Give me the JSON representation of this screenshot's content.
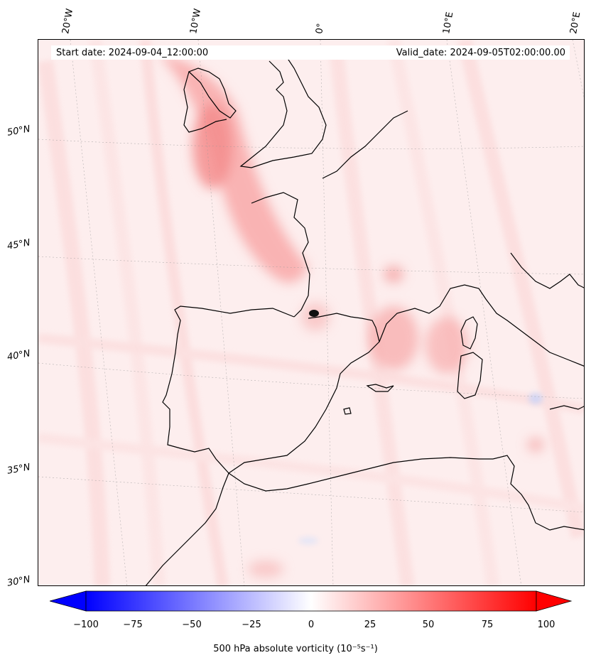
{
  "map": {
    "start_date": "Start date: 2024-09-04_12:00:00",
    "valid_date": "Valid_date: 2024-09-05T02:00:00.00",
    "longitude_labels": [
      "20°W",
      "10°W",
      "0°",
      "10°E",
      "20°E"
    ],
    "latitude_labels": [
      "50°N",
      "45°N",
      "40°N",
      "35°N",
      "30°N"
    ],
    "background_color": "#fdeeee",
    "coastline_color": "#000000"
  },
  "colorbar": {
    "ticks": [
      "−100",
      "−75",
      "−50",
      "−25",
      "0",
      "25",
      "50",
      "75",
      "100"
    ],
    "label": "500 hPa absolute vorticity (10⁻⁵s⁻¹)",
    "min": -100,
    "max": 100,
    "low_color": "#0000ff",
    "mid_color": "#ffffff",
    "high_color": "#ff0000"
  }
}
